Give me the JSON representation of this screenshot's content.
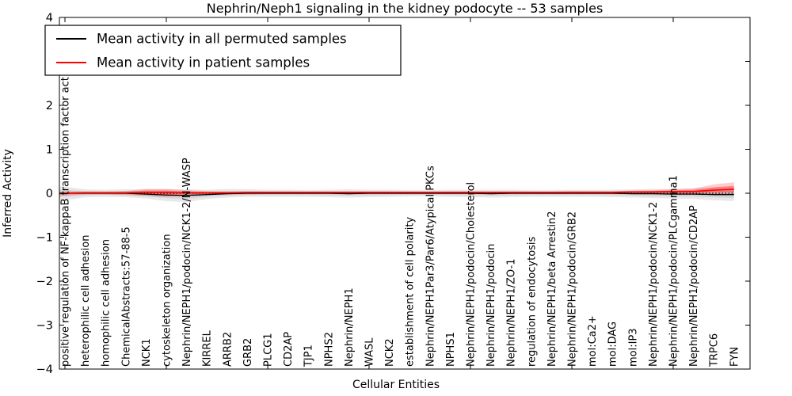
{
  "figure": {
    "title": "Nephrin/Neph1 signaling in the kidney podocyte -- 53 samples",
    "xlabel": "Cellular Entities",
    "ylabel": "Inferred Activity"
  },
  "legend": {
    "position": "upper left",
    "items": [
      {
        "label": "Mean activity in all permuted samples",
        "color": "#000000"
      },
      {
        "label": "Mean activity in patient samples",
        "color": "#ff0000"
      }
    ]
  },
  "chart_data": {
    "type": "line",
    "title": "Nephrin/Neph1 signaling in the kidney podocyte -- 53 samples",
    "xlabel": "Cellular Entities",
    "ylabel": "Inferred Activity",
    "ylim": [
      -4,
      4
    ],
    "yticks": [
      -4,
      -3,
      -2,
      -1,
      0,
      1,
      2,
      3,
      4
    ],
    "ytick_labels": [
      "−4",
      "−3",
      "−2",
      "−1",
      "0",
      "1",
      "2",
      "3",
      "4"
    ],
    "xtick_indices": [
      0,
      5,
      10,
      15,
      20,
      25,
      30
    ],
    "grid": false,
    "legend_position": "upper left",
    "zero_line": {
      "value": 0,
      "style": "dotted",
      "color": "#000000"
    },
    "band_colors": {
      "permuted": "rgba(0,0,0,0.09)",
      "patient_outer": "rgba(255,0,0,0.20)",
      "patient_inner": "rgba(255,0,0,0.33)"
    },
    "categories": [
      "positive regulation of NF-kappaB transcription factor act",
      "heterophilic cell adhesion",
      "homophilic cell adhesion",
      "ChemicalAbstracts:57-88-5",
      "NCK1",
      "cytoskeleton organization",
      "Nephrin/NEPH1/podocin/NCK1-2/N-WASP",
      "KIRREL",
      "ARRB2",
      "GRB2",
      "PLCG1",
      "CD2AP",
      "TJP1",
      "NPHS2",
      "Nephrin/NEPH1",
      "WASL",
      "NCK2",
      "establishment of cell polarity",
      "Nephrin/NEPH1Par3/Par6/Atypical PKCs",
      "NPHS1",
      "Nephrin/NEPH1/podocin/Cholesterol",
      "Nephrin/NEPH1/podocin",
      "Nephrin/NEPH1/ZO-1",
      "regulation of endocytosis",
      "Nephrin/NEPH1/beta Arrestin2",
      "Nephrin/NEPH1/podocin/GRB2",
      "mol:Ca2+",
      "mol:DAG",
      "mol:IP3",
      "Nephrin/NEPH1/podocin/NCK1-2",
      "Nephrin/NEPH1/podocin/PLCgamma1",
      "Nephrin/NEPH1/podocin/CD2AP",
      "TRPC6",
      "FYN"
    ],
    "series": [
      {
        "name": "Mean activity in all permuted samples",
        "color": "#000000",
        "values": [
          0,
          0,
          0,
          0,
          -0.02,
          -0.04,
          -0.05,
          -0.03,
          -0.01,
          0,
          0,
          0,
          0,
          0,
          -0.01,
          0,
          0,
          0,
          0,
          0,
          0,
          -0.01,
          0,
          0,
          0,
          0,
          0,
          0,
          -0.01,
          -0.01,
          -0.02,
          -0.02,
          -0.03,
          -0.03
        ],
        "band_upper": [
          0.15,
          0.09,
          0.08,
          0.09,
          0.09,
          0.09,
          0.09,
          0.08,
          0.1,
          0.09,
          0.08,
          0.08,
          0.07,
          0.08,
          0.09,
          0.08,
          0.08,
          0.07,
          0.07,
          0.08,
          0.08,
          0.08,
          0.08,
          0.07,
          0.07,
          0.08,
          0.08,
          0.08,
          0.09,
          0.1,
          0.1,
          0.11,
          0.13,
          0.14
        ],
        "band_lower": [
          -0.16,
          -0.09,
          -0.08,
          -0.09,
          -0.12,
          -0.18,
          -0.2,
          -0.13,
          -0.1,
          -0.08,
          -0.08,
          -0.08,
          -0.08,
          -0.09,
          -0.1,
          -0.09,
          -0.08,
          -0.07,
          -0.07,
          -0.08,
          -0.09,
          -0.1,
          -0.09,
          -0.08,
          -0.08,
          -0.08,
          -0.08,
          -0.09,
          -0.1,
          -0.11,
          -0.12,
          -0.13,
          -0.16,
          -0.18
        ]
      },
      {
        "name": "Mean activity in patient samples",
        "color": "#ff0000",
        "values": [
          0,
          0.01,
          0.01,
          0.01,
          0.02,
          0.02,
          0.01,
          0.01,
          0.01,
          0.02,
          0.02,
          0.02,
          0.02,
          0.02,
          0.02,
          0.02,
          0.02,
          0.02,
          0.02,
          0.02,
          0.02,
          0.02,
          0.02,
          0.02,
          0.02,
          0.02,
          0.02,
          0.02,
          0.03,
          0.03,
          0.04,
          0.04,
          0.07,
          0.09
        ],
        "band_upper": [
          0.04,
          0.04,
          0.04,
          0.05,
          0.1,
          0.1,
          0.07,
          0.05,
          0.04,
          0.04,
          0.04,
          0.04,
          0.04,
          0.04,
          0.04,
          0.04,
          0.04,
          0.04,
          0.04,
          0.04,
          0.04,
          0.04,
          0.04,
          0.04,
          0.04,
          0.05,
          0.05,
          0.05,
          0.06,
          0.07,
          0.09,
          0.11,
          0.2,
          0.25
        ],
        "band_lower": [
          -0.05,
          -0.03,
          -0.03,
          -0.04,
          -0.06,
          -0.08,
          -0.06,
          -0.04,
          -0.03,
          -0.03,
          -0.02,
          -0.02,
          -0.02,
          -0.02,
          -0.02,
          -0.02,
          -0.02,
          -0.02,
          -0.02,
          -0.02,
          -0.02,
          -0.02,
          -0.02,
          -0.02,
          -0.02,
          -0.02,
          -0.02,
          -0.02,
          -0.02,
          -0.02,
          -0.02,
          -0.02,
          -0.02,
          -0.03
        ]
      }
    ]
  }
}
